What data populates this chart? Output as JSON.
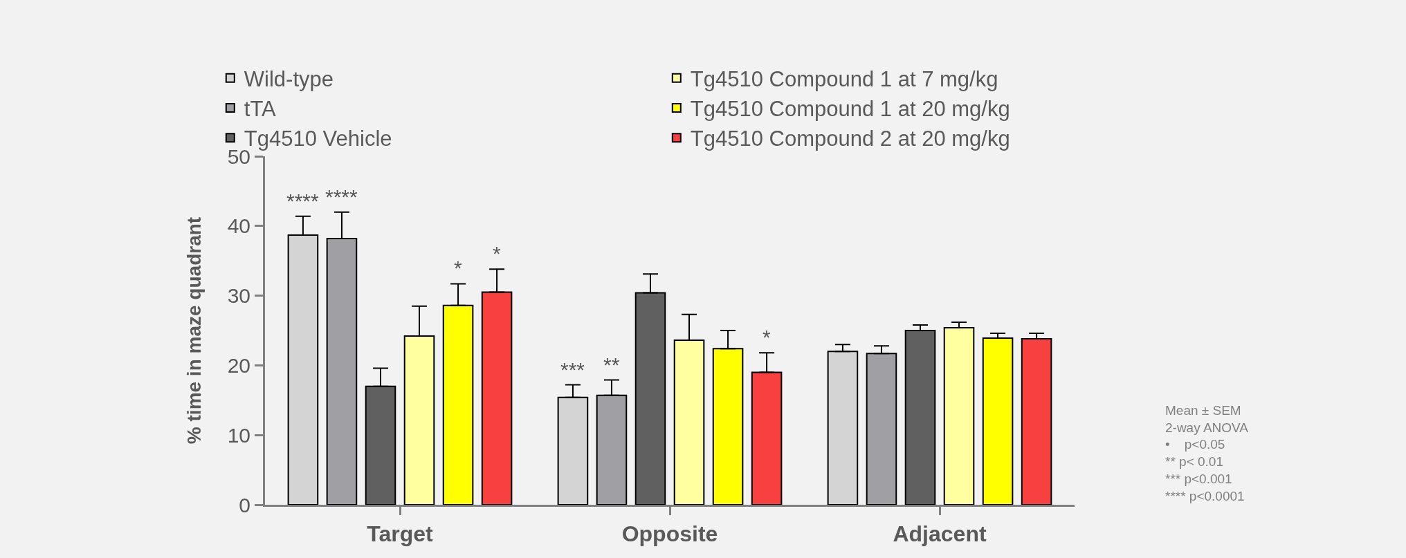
{
  "chart_data": {
    "type": "bar",
    "ylabel": "% time in maze quadrant",
    "categories": [
      "Target",
      "Opposite",
      "Adjacent"
    ],
    "series": [
      {
        "name": "Wild-type",
        "color": "#d4d4d4",
        "values": [
          38.7,
          15.4,
          22.0
        ],
        "errors": [
          [
            38.7,
            41.4
          ],
          [
            15.4,
            17.2
          ],
          [
            22.0,
            23.0
          ]
        ],
        "value_labels": [
          "****",
          "***",
          null
        ]
      },
      {
        "name": "tTA",
        "color": "#a09fa4",
        "values": [
          38.2,
          15.7,
          21.7
        ],
        "errors": [
          [
            38.2,
            42.0
          ],
          [
            15.7,
            17.9
          ],
          [
            21.7,
            22.8
          ]
        ],
        "value_labels": [
          "****",
          "**",
          null
        ]
      },
      {
        "name": "Tg4510 Vehicle",
        "color": "#606060",
        "values": [
          17.0,
          30.4,
          25.0
        ],
        "errors": [
          [
            17.0,
            19.6
          ],
          [
            30.4,
            33.1
          ],
          [
            25.0,
            25.8
          ]
        ],
        "value_labels": [
          null,
          null,
          null
        ]
      },
      {
        "name": "Tg4510 Compound 1 at 7 mg/kg",
        "color": "#ffffa0",
        "values": [
          24.2,
          23.6,
          25.4
        ],
        "errors": [
          [
            24.2,
            28.5
          ],
          [
            23.6,
            27.3
          ],
          [
            25.4,
            26.2
          ]
        ],
        "value_labels": [
          null,
          null,
          null
        ]
      },
      {
        "name": "Tg4510 Compound 1 at 20 mg/kg",
        "color": "#ffff00",
        "values": [
          28.6,
          22.4,
          23.9
        ],
        "errors": [
          [
            28.6,
            31.7
          ],
          [
            22.4,
            25.0
          ],
          [
            23.9,
            24.6
          ]
        ],
        "value_labels": [
          "*",
          null,
          null
        ]
      },
      {
        "name": "Tg4510 Compound 2 at 20 mg/kg",
        "color": "#f94040",
        "values": [
          30.5,
          19.0,
          23.8
        ],
        "errors": [
          [
            30.5,
            33.8
          ],
          [
            19.0,
            21.8
          ],
          [
            23.8,
            24.6
          ]
        ],
        "value_labels": [
          "*",
          "*",
          null
        ]
      }
    ],
    "ylim": [
      0,
      50
    ],
    "yticks": [
      0,
      10,
      20,
      30,
      40,
      50
    ],
    "grid": false,
    "legend": "top",
    "annotations": [
      "Mean ± SEM\n2-way ANOVA\n•    p<0.05\n** p< 0.01\n*** p<0.001\n**** p<0.0001"
    ]
  }
}
